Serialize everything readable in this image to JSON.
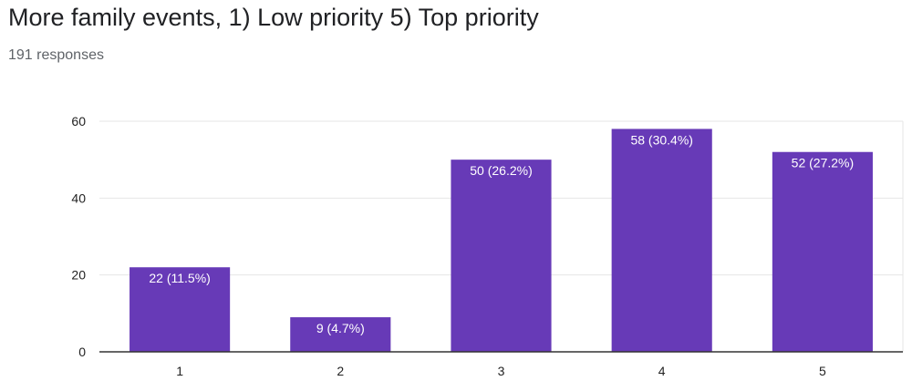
{
  "chart_data": {
    "type": "bar",
    "title": "More family events, 1) Low priority 5) Top priority",
    "subtitle": "191 responses",
    "categories": [
      "1",
      "2",
      "3",
      "4",
      "5"
    ],
    "values": [
      22,
      9,
      50,
      58,
      52
    ],
    "data_labels": [
      "22 (11.5%)",
      "9 (4.7%)",
      "50 (26.2%)",
      "58 (30.4%)",
      "52 (27.2%)"
    ],
    "y_ticks": [
      0,
      20,
      40,
      60
    ],
    "ylim": [
      0,
      60
    ],
    "grid": true,
    "legend": "none",
    "bar_color": "#673ab7"
  }
}
